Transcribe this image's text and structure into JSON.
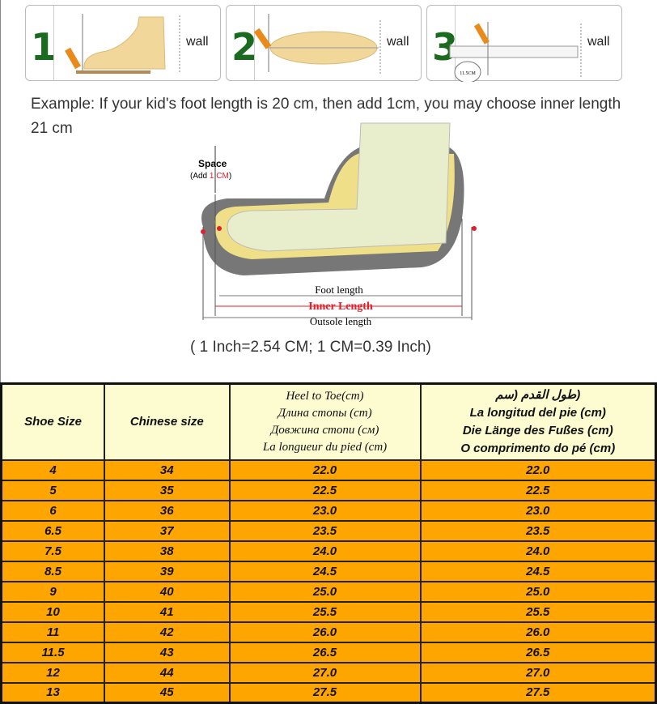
{
  "steps": [
    {
      "number": "1",
      "label": "wall"
    },
    {
      "number": "2",
      "label": "wall"
    },
    {
      "number": "3",
      "label": "wall",
      "ruler_reading": "11.5CM"
    }
  ],
  "example_text": "Example: If your kid's foot length is 20 cm, then add 1cm, you may choose inner length 21 cm",
  "diagram": {
    "space": "Space",
    "add": "(Add ",
    "add_value": "1 CM",
    "add_close": ")",
    "foot_length": "Foot length",
    "inner_length": "Inner Length",
    "outsole_length": "Outsole length"
  },
  "conversion": "( 1 Inch=2.54 CM; 1 CM=0.39 Inch)",
  "table": {
    "headers": {
      "shoe_size": "Shoe Size",
      "chinese_size": "Chinese size",
      "heel_to_toe": [
        "Heel to Toe(cm)",
        "Длина стопы (cm)",
        "Довжина стопи (см)",
        "La longueur du pied (cm)"
      ],
      "foot_length": [
        "(طول القدم (سم",
        "La longitud del pie (cm)",
        "Die Länge des Fußes (cm)",
        "O comprimento do pé (cm)"
      ]
    },
    "rows": [
      [
        "4",
        "34",
        "22.0",
        "22.0"
      ],
      [
        "5",
        "35",
        "22.5",
        "22.5"
      ],
      [
        "6",
        "36",
        "23.0",
        "23.0"
      ],
      [
        "6.5",
        "37",
        "23.5",
        "23.5"
      ],
      [
        "7.5",
        "38",
        "24.0",
        "24.0"
      ],
      [
        "8.5",
        "39",
        "24.5",
        "24.5"
      ],
      [
        "9",
        "40",
        "25.0",
        "25.0"
      ],
      [
        "10",
        "41",
        "25.5",
        "25.5"
      ],
      [
        "11",
        "42",
        "26.0",
        "26.0"
      ],
      [
        "11.5",
        "43",
        "26.5",
        "26.5"
      ],
      [
        "12",
        "44",
        "27.0",
        "27.0"
      ],
      [
        "13",
        "45",
        "27.5",
        "27.5"
      ]
    ]
  },
  "colors": {
    "header_bg": "#fdfbd0",
    "row_bg": "#ffa500",
    "step_number": "#1a6b1f",
    "inner_length": "#e0202a"
  }
}
